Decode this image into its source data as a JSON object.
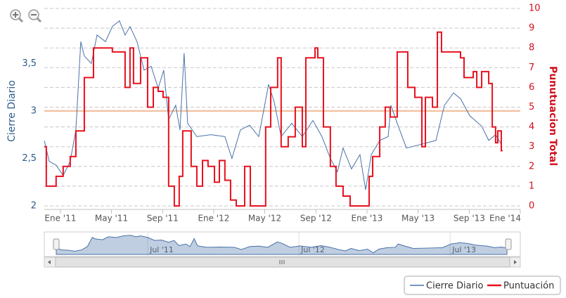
{
  "chart_data": {
    "type": "line",
    "ylabel": "Cierre Diario",
    "y2label": "Punutuacion Total",
    "xlim": [
      2010.895,
      2014.0
    ],
    "xticks": [
      {
        "value": 2011.0,
        "label": "Ene '11"
      },
      {
        "value": 2011.333,
        "label": "May '11"
      },
      {
        "value": 2011.667,
        "label": "Sep '11"
      },
      {
        "value": 2012.0,
        "label": "Ene '12"
      },
      {
        "value": 2012.333,
        "label": "May '12"
      },
      {
        "value": 2012.667,
        "label": "Sep '12"
      },
      {
        "value": 2013.0,
        "label": "Ene '13"
      },
      {
        "value": 2013.333,
        "label": "May '13"
      },
      {
        "value": 2013.667,
        "label": "Sep '13"
      },
      {
        "value": 2014.0,
        "label": "Ene '14"
      }
    ],
    "ylim": [
      2,
      4.08
    ],
    "yticks": [
      2,
      {
        "value": 2.5,
        "label": "2,5"
      },
      3,
      {
        "value": 3.5,
        "label": "3,5"
      }
    ],
    "y2lim": [
      0,
      10
    ],
    "y2ticks": [
      0,
      1,
      2,
      3,
      4,
      5,
      6,
      7,
      8,
      9,
      10
    ],
    "grid": "y2",
    "reference_line": {
      "value": 3,
      "color": "#f2c4a4"
    },
    "series": [
      {
        "name": "Cierre Diario",
        "color": "#4a72a8",
        "axis": "y",
        "x": [
          2010.895,
          2010.927,
          2010.972,
          2011.018,
          2011.064,
          2011.101,
          2011.133,
          2011.156,
          2011.202,
          2011.239,
          2011.294,
          2011.339,
          2011.385,
          2011.422,
          2011.454,
          2011.5,
          2011.546,
          2011.592,
          2011.638,
          2011.674,
          2011.706,
          2011.752,
          2011.78,
          2011.807,
          2011.83,
          2011.89,
          2011.982,
          2012.073,
          2012.119,
          2012.174,
          2012.234,
          2012.294,
          2012.358,
          2012.394,
          2012.44,
          2012.509,
          2012.578,
          2012.647,
          2012.706,
          2012.761,
          2012.807,
          2012.844,
          2012.899,
          2012.954,
          2012.991,
          2013.028,
          2013.083,
          2013.138,
          2013.156,
          2013.197,
          2013.257,
          2013.358,
          2013.45,
          2013.505,
          2013.564,
          2013.61,
          2013.67,
          2013.748,
          2013.794,
          2013.839,
          2013.876
        ],
        "values": [
          2.69,
          2.47,
          2.43,
          2.32,
          2.47,
          2.8,
          3.73,
          3.58,
          3.5,
          3.8,
          3.73,
          3.89,
          3.95,
          3.8,
          3.89,
          3.73,
          3.43,
          3.47,
          3.24,
          3.43,
          2.91,
          3.06,
          2.8,
          3.61,
          2.87,
          2.73,
          2.75,
          2.73,
          2.5,
          2.8,
          2.85,
          2.73,
          3.28,
          3.1,
          2.73,
          2.87,
          2.73,
          2.9,
          2.73,
          2.5,
          2.36,
          2.61,
          2.39,
          2.54,
          2.17,
          2.54,
          2.69,
          2.73,
          3.06,
          2.87,
          2.61,
          2.65,
          2.69,
          3.06,
          3.19,
          3.13,
          2.95,
          2.84,
          2.69,
          2.75,
          2.65
        ]
      },
      {
        "name": "Puntuación",
        "color": "#e8101e",
        "axis": "y2",
        "step": true,
        "x": [
          2010.894,
          2010.908,
          2010.972,
          2011.018,
          2011.064,
          2011.101,
          2011.156,
          2011.216,
          2011.339,
          2011.422,
          2011.454,
          2011.477,
          2011.523,
          2011.569,
          2011.606,
          2011.638,
          2011.67,
          2011.706,
          2011.743,
          2011.775,
          2011.798,
          2011.853,
          2011.89,
          2011.927,
          2011.963,
          2012.005,
          2012.037,
          2012.073,
          2012.11,
          2012.147,
          2012.202,
          2012.239,
          2012.339,
          2012.372,
          2012.417,
          2012.44,
          2012.486,
          2012.532,
          2012.578,
          2012.601,
          2012.661,
          2012.679,
          2012.716,
          2012.761,
          2012.798,
          2012.844,
          2012.89,
          2013.014,
          2013.037,
          2013.083,
          2013.119,
          2013.151,
          2013.197,
          2013.266,
          2013.312,
          2013.358,
          2013.381,
          2013.427,
          2013.459,
          2013.486,
          2013.61,
          2013.633,
          2013.693,
          2013.716,
          2013.748,
          2013.794,
          2013.817,
          2013.839,
          2013.853,
          2013.876,
          2013.885
        ],
        "values": [
          3,
          1,
          1.5,
          2,
          2.5,
          3.8,
          6.5,
          8,
          7.8,
          6,
          8,
          6.2,
          7.5,
          5,
          6,
          5.8,
          5.5,
          1,
          0,
          1.5,
          3.8,
          2,
          1,
          2.3,
          2,
          1.2,
          2.3,
          1.3,
          0.3,
          0,
          2,
          0,
          4,
          6,
          7.5,
          3,
          3.5,
          5,
          3,
          7.5,
          8,
          7.5,
          4,
          2,
          1,
          0.5,
          0,
          1.5,
          2.5,
          4,
          5,
          4.5,
          7.8,
          6,
          5.5,
          3,
          5.5,
          5,
          8.8,
          7.8,
          7.5,
          6.5,
          6.8,
          6,
          6.8,
          6.2,
          4,
          3.2,
          3.8,
          2.8,
          2.8
        ]
      }
    ],
    "navigator": {
      "xlim": [
        2010.895,
        2013.885
      ],
      "xticks": [
        {
          "value": 2011.5,
          "label": "Jul '11"
        },
        {
          "value": 2012.5,
          "label": "Jul '12"
        },
        {
          "value": 2013.5,
          "label": "Jul '13"
        }
      ]
    }
  }
}
